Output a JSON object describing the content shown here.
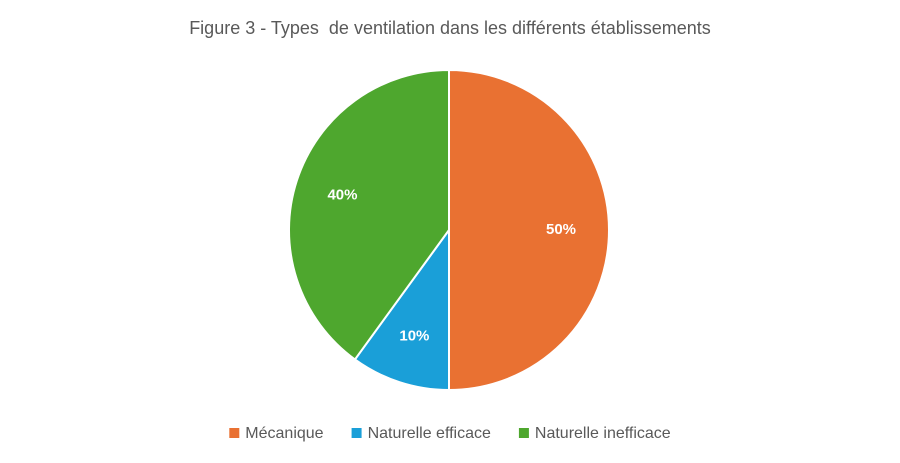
{
  "chart_data": {
    "type": "pie",
    "title": "Figure 3 - Types  de ventilation dans les différents établissements",
    "categories": [
      "Mécanique",
      "Naturelle efficace",
      "Naturelle inefficace"
    ],
    "values": [
      50,
      10,
      40
    ],
    "value_labels": [
      "50%",
      "10%",
      "40%"
    ],
    "colors": [
      "#e97132",
      "#1a9fd8",
      "#4ea72e"
    ],
    "legend": "bottom"
  }
}
